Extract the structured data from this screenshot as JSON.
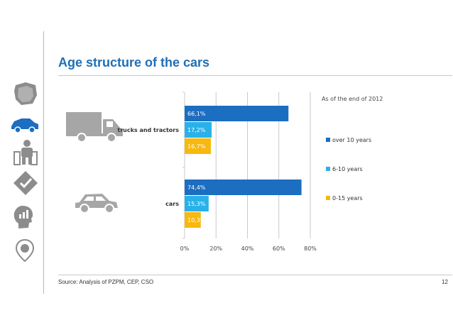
{
  "slide": {
    "title": "Age structure of the cars",
    "source": "Source: Analysis of PZPM, CEP, CSO",
    "page_number": "12"
  },
  "side_icons": [
    "map-poland-icon",
    "car-icon",
    "mechanic-icon",
    "checkmark-diamond-icon",
    "head-chart-icon",
    "location-pin-icon"
  ],
  "colors": {
    "title": "#1f6fb6",
    "over10": "#1c6ec1",
    "6to10": "#2ab1ea",
    "0to15": "#f7b80f",
    "icon": "#8c8c8c"
  },
  "chart_data": {
    "type": "bar",
    "orientation": "horizontal",
    "subtitle": "As of the end of 2012",
    "categories": [
      "trucks and tractors",
      "cars"
    ],
    "series": [
      {
        "name": "over 10 years",
        "values": [
          66.1,
          74.4
        ],
        "labels": [
          "66,1%",
          "74,4%"
        ]
      },
      {
        "name": "6-10 years",
        "values": [
          17.2,
          15.3
        ],
        "labels": [
          "17,2%",
          "15,3%"
        ]
      },
      {
        "name": "0-15 years",
        "values": [
          16.7,
          10.3
        ],
        "labels": [
          "16,7%",
          "10,3%"
        ]
      }
    ],
    "xlim": [
      0,
      80
    ],
    "xticks": [
      "0%",
      "20%",
      "40%",
      "60%",
      "80%"
    ],
    "grid": true,
    "legend_position": "right"
  }
}
